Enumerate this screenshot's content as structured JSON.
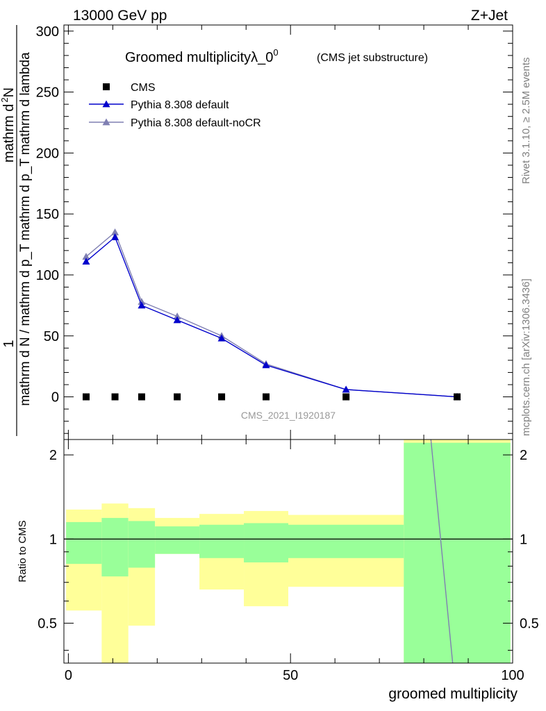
{
  "header": {
    "left": "13000 GeV pp",
    "right": "Z+Jet"
  },
  "side_labels": {
    "rivet": "Rivet 3.1.10, ≥ 2.5M events",
    "mcplots": "mcplots.cern.ch [arXiv:1306.3436]"
  },
  "chart_data": [
    {
      "type": "line",
      "title": "Groomed multiplicityλ_0",
      "title_superscript": "0",
      "subtitle": "(CMS jet substructure)",
      "watermark": "CMS_2021_I1920187",
      "ylabel_line1": "mathrm d N / mathrm d p_T mathrm d p_T mathrm d lambda",
      "ylabel_numerator": "mathrm d",
      "ylabel_numerator_super": "2",
      "ylabel_numerator_tail": "N",
      "ylabel_prefix": "1",
      "ylabel_denominator": "mathrm d N / mathrm d p_T mathrm d p_T mathrm d lambda",
      "xlim": [
        -1,
        100
      ],
      "ylim": [
        -35,
        305
      ],
      "yticks": [
        0,
        50,
        100,
        150,
        200,
        250,
        300
      ],
      "ytick_labels": [
        "0",
        "50",
        "100",
        "150",
        "200",
        "250",
        "300"
      ],
      "legend_position": "top-left",
      "series": [
        {
          "name": "CMS",
          "color": "#000000",
          "marker": "square",
          "x": [
            4,
            10.5,
            16.5,
            24.5,
            34.5,
            44.5,
            62.5,
            87.5
          ],
          "y": [
            0,
            0,
            0,
            0,
            0,
            0,
            0,
            0
          ]
        },
        {
          "name": "Pythia 8.308 default",
          "color": "#0000cc",
          "marker": "triangle",
          "x": [
            4,
            10.5,
            16.5,
            24.5,
            34.5,
            44.5,
            62.5,
            87.5
          ],
          "y": [
            111,
            131,
            75,
            63,
            48,
            26,
            6,
            0
          ]
        },
        {
          "name": "Pythia 8.308 default-noCR",
          "color": "#7f7fb2",
          "marker": "triangle",
          "x": [
            4,
            10.5,
            16.5,
            24.5,
            34.5,
            44.5,
            62.5,
            87.5
          ],
          "y": [
            115,
            135,
            78,
            66,
            50,
            27,
            6,
            0
          ]
        }
      ]
    },
    {
      "type": "area",
      "ylabel": "Ratio to CMS",
      "xlabel": "groomed multiplicity",
      "xlim": [
        -1,
        100
      ],
      "ylim": [
        0.36,
        2.27
      ],
      "xticks": [
        0,
        50,
        100
      ],
      "xtick_labels": [
        "0",
        "50",
        "100"
      ],
      "yticks": [
        0.5,
        1,
        2
      ],
      "ytick_labels": [
        "0.5",
        "1",
        "2"
      ],
      "bins": [
        {
          "lo": -0.5,
          "hi": 7.5,
          "inner": [
            0.815,
            1.15
          ],
          "outer": [
            0.555,
            1.275
          ]
        },
        {
          "lo": 7.5,
          "hi": 13.5,
          "inner": [
            0.735,
            1.19
          ],
          "outer": [
            0.36,
            1.34
          ]
        },
        {
          "lo": 13.5,
          "hi": 19.5,
          "inner": [
            0.79,
            1.16
          ],
          "outer": [
            0.49,
            1.29
          ]
        },
        {
          "lo": 19.5,
          "hi": 29.5,
          "inner": [
            0.885,
            1.11
          ],
          "outer": [
            0.885,
            1.19
          ]
        },
        {
          "lo": 29.5,
          "hi": 39.5,
          "inner": [
            0.855,
            1.125
          ],
          "outer": [
            0.66,
            1.23
          ]
        },
        {
          "lo": 39.5,
          "hi": 49.5,
          "inner": [
            0.825,
            1.14
          ],
          "outer": [
            0.575,
            1.26
          ]
        },
        {
          "lo": 49.5,
          "hi": 75.5,
          "inner": [
            0.855,
            1.125
          ],
          "outer": [
            0.675,
            1.22
          ]
        },
        {
          "lo": 75.5,
          "hi": 99.5,
          "inner": [
            0.36,
            2.21
          ],
          "outer": [
            0.36,
            2.27
          ]
        }
      ],
      "series": [
        {
          "name": "Pythia 8.308 default-noCR",
          "color": "#7f7fb2",
          "x": [
            81.6,
            86.5
          ],
          "y": [
            2.27,
            0.36
          ]
        }
      ],
      "colors": {
        "inner": "#99ff99",
        "outer": "#ffff99"
      }
    }
  ]
}
